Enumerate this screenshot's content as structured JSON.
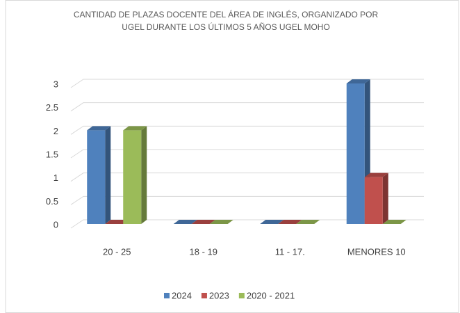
{
  "chart_data": {
    "type": "bar3d",
    "title": "CANTIDAD DE PLAZAS DOCENTE DEL ÁREA DE INGLÉS, ORGANIZADO POR UGEL DURANTE LOS ÚLTIMOS 5 AÑOS UGEL MOHO",
    "categories": [
      "20 - 25",
      "18 - 19",
      "11 - 17.",
      "MENORES 10"
    ],
    "series": [
      {
        "name": "2024",
        "color": "#4f81bd",
        "values": [
          2,
          0,
          0,
          3
        ]
      },
      {
        "name": "2023",
        "color": "#c0504d",
        "values": [
          0,
          0,
          0,
          1
        ]
      },
      {
        "name": "2020 - 2021",
        "color": "#9bbb59",
        "values": [
          2,
          0,
          0,
          0
        ]
      }
    ],
    "ylim": [
      0,
      3
    ],
    "yticks": [
      0,
      0.5,
      1,
      1.5,
      2,
      2.5,
      3
    ],
    "grid": true,
    "legend": "bottom"
  }
}
